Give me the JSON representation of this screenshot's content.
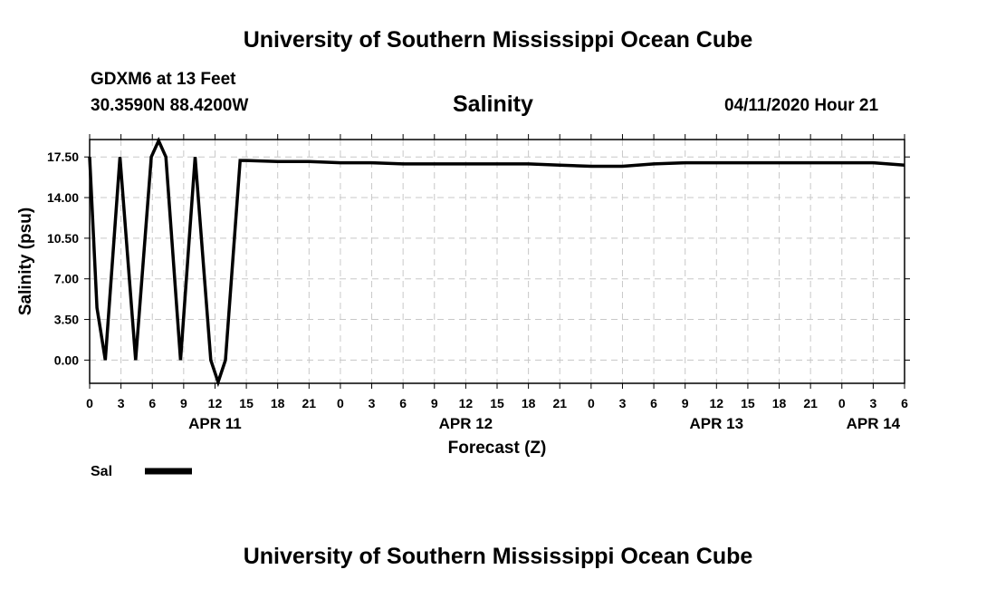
{
  "header": {
    "top_title": "University of Southern Mississippi Ocean Cube",
    "station": "GDXM6 at 13 Feet",
    "coords": "30.3590N 88.4200W",
    "chart_title": "Salinity",
    "timestamp": "04/11/2020 Hour 21"
  },
  "footer": {
    "bottom_title": "University of Southern Mississippi Ocean Cube"
  },
  "chart_data": {
    "type": "line",
    "title": "Salinity",
    "xlabel": "Forecast (Z)",
    "ylabel": "Salinity (psu)",
    "ylim": [
      -2.0,
      19.0
    ],
    "xlim": [
      0,
      78
    ],
    "grid": true,
    "yticks": [
      0.0,
      3.5,
      7.0,
      10.5,
      14.0,
      17.5
    ],
    "ytick_labels": [
      "0.00",
      "3.50",
      "7.00",
      "10.50",
      "14.00",
      "17.50"
    ],
    "xticks": [
      0,
      3,
      6,
      9,
      12,
      15,
      18,
      21,
      24,
      27,
      30,
      33,
      36,
      39,
      42,
      45,
      48,
      51,
      54,
      57,
      60,
      63,
      66,
      69,
      72,
      75,
      78
    ],
    "xtick_labels": [
      "0",
      "3",
      "6",
      "9",
      "12",
      "15",
      "18",
      "21",
      "0",
      "3",
      "6",
      "9",
      "12",
      "15",
      "18",
      "21",
      "0",
      "3",
      "6",
      "9",
      "12",
      "15",
      "18",
      "21",
      "0",
      "3",
      "6"
    ],
    "date_labels": [
      {
        "label": "APR 11",
        "x": 12
      },
      {
        "label": "APR 12",
        "x": 36
      },
      {
        "label": "APR 13",
        "x": 60
      },
      {
        "label": "APR 14",
        "x": 75
      }
    ],
    "legend_position": "below-left",
    "series": [
      {
        "name": "Sal",
        "color": "#000000",
        "x": [
          0,
          0.7,
          1.5,
          2.9,
          4.4,
          5.9,
          6.6,
          7.3,
          8.7,
          10.1,
          11.6,
          12.3,
          13.0,
          14.4,
          15,
          18,
          21,
          24,
          27,
          30,
          33,
          36,
          39,
          42,
          45,
          48,
          51,
          54,
          57,
          60,
          63,
          66,
          69,
          72,
          75,
          78
        ],
        "y": [
          17.5,
          4.5,
          0.0,
          17.5,
          0.0,
          17.5,
          18.9,
          17.5,
          0.0,
          17.5,
          0.0,
          -1.9,
          0.0,
          17.2,
          17.2,
          17.1,
          17.1,
          17.0,
          17.0,
          16.9,
          16.9,
          16.9,
          16.9,
          16.9,
          16.8,
          16.7,
          16.7,
          16.9,
          17.0,
          17.0,
          17.0,
          17.0,
          17.0,
          17.0,
          17.0,
          16.8
        ]
      }
    ]
  }
}
